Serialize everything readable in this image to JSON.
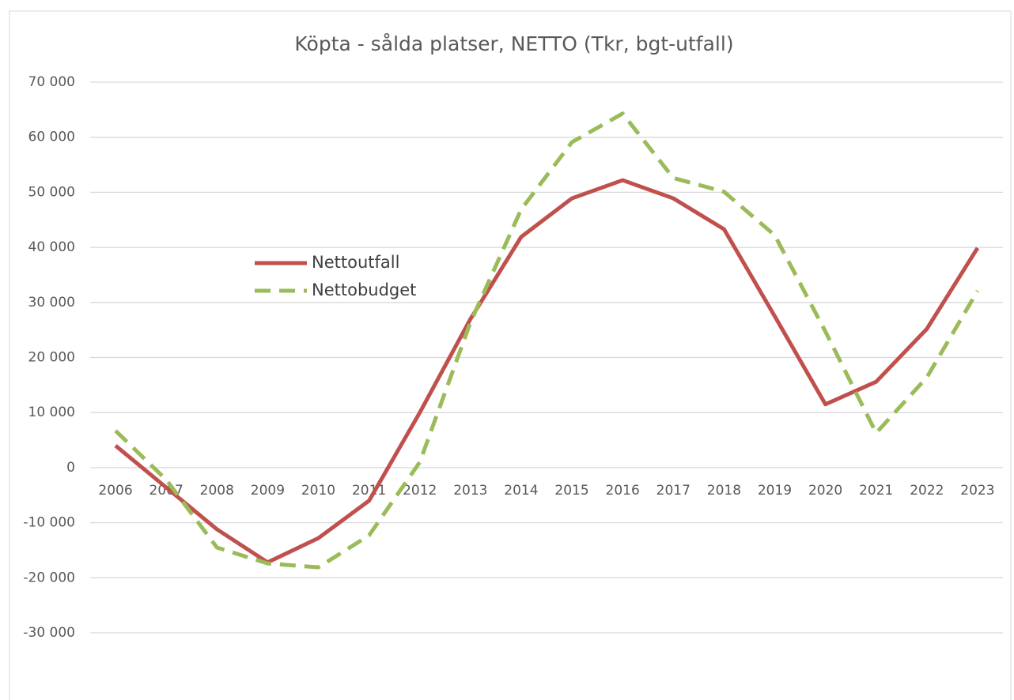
{
  "chart_data": {
    "type": "line",
    "title": "Köpta - sålda platser, NETTO    (Tkr, bgt-utfall)",
    "categories": [
      "2006",
      "2007",
      "2008",
      "2009",
      "2010",
      "2011",
      "2012",
      "2013",
      "2014",
      "2015",
      "2016",
      "2017",
      "2018",
      "2019",
      "2020",
      "2021",
      "2022",
      "2023"
    ],
    "series": [
      {
        "name": "Nettoutfall",
        "color": "#c0504d",
        "dash": false,
        "values": [
          4000,
          -3600,
          -11200,
          -17200,
          -12800,
          -6000,
          10000,
          27000,
          41900,
          48900,
          52200,
          48900,
          43300,
          27500,
          11500,
          15600,
          25200,
          39900
        ]
      },
      {
        "name": "Nettobudget",
        "color": "#9bbb59",
        "dash": true,
        "values": [
          6700,
          -2200,
          -14500,
          -17400,
          -18100,
          -12300,
          1000,
          26400,
          46900,
          59100,
          64300,
          52600,
          50100,
          42200,
          24700,
          6300,
          16400,
          32100
        ]
      }
    ],
    "ylim": [
      -30000,
      70000
    ],
    "yticks": [
      {
        "value": -30000,
        "label": "-30 000"
      },
      {
        "value": -20000,
        "label": "-20 000"
      },
      {
        "value": -10000,
        "label": "-10 000"
      },
      0,
      {
        "value": 10000,
        "label": "10 000"
      },
      {
        "value": 20000,
        "label": "20 000"
      },
      {
        "value": 30000,
        "label": "30 000"
      },
      {
        "value": 40000,
        "label": "40 000"
      },
      {
        "value": 50000,
        "label": "50 000"
      },
      {
        "value": 60000,
        "label": "60 000"
      },
      {
        "value": 70000,
        "label": "70 000"
      }
    ],
    "grid": true
  }
}
